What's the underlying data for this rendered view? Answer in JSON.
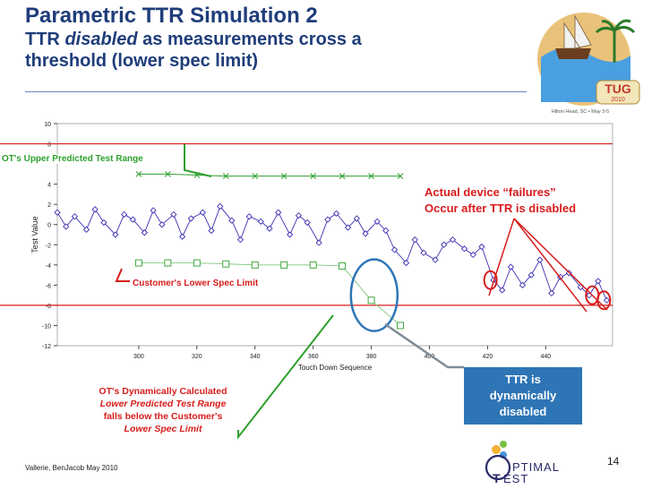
{
  "header": {
    "title": "Parametric TTR Simulation 2",
    "subtitle_prefix": "TTR ",
    "subtitle_em": "disabled",
    "subtitle_rest": " as measurements cross a",
    "subtitle_line3": "threshold (lower spec limit)"
  },
  "logo": {
    "text": "TUG",
    "year": "2010",
    "place": "Hilton Head, SC • May 3-5"
  },
  "callouts": {
    "upper_range": "OT's Upper Predicted Test Range",
    "failures_line1": "Actual device “failures”",
    "failures_line2": "Occur after TTR is disabled",
    "lower_spec": "Customer's Lower Spec Limit",
    "dyn_line1": "OT's Dynamically Calculated",
    "dyn_line2": "Lower Predicted Test Range",
    "dyn_line3": "falls below the Customer's",
    "dyn_line4": "Lower Spec Limit",
    "ttr_line1": "TTR is",
    "ttr_line2": "dynamically",
    "ttr_line3": "disabled"
  },
  "footer": {
    "author": "Vallerie, BenJacob  May 2010",
    "page": "14"
  },
  "brand": {
    "line1": "PTIMAL",
    "line2": "EST"
  },
  "colors": {
    "title": "#1f3d7a",
    "series": "#3b2fb4",
    "upper": "#2ea02e",
    "lower": "#7fc97f",
    "limit": "#d81c1c",
    "accent": "#2e75b6"
  },
  "chart_data": {
    "type": "scatter",
    "xlabel": "Touch Down Sequence",
    "ylabel": "Test Value",
    "xlim": [
      272,
      463
    ],
    "ylim": [
      -12,
      10
    ],
    "xticks": [
      300,
      320,
      340,
      360,
      380,
      400,
      420,
      440
    ],
    "yticks": [
      10,
      8,
      4,
      2,
      0,
      -2,
      -4,
      -6,
      -8,
      -10,
      -12
    ],
    "series": [
      {
        "name": "",
        "role": "measured",
        "x": [
          272,
          275,
          278,
          282,
          285,
          288,
          292,
          295,
          298,
          302,
          305,
          308,
          312,
          315,
          318,
          322,
          325,
          328,
          332,
          335,
          338,
          342,
          345,
          348,
          352,
          355,
          358,
          362,
          365,
          368,
          372,
          375,
          378,
          382,
          385,
          388,
          392,
          395,
          398,
          402,
          405,
          408,
          412,
          415,
          418,
          422,
          425,
          428,
          432,
          435,
          438,
          442,
          445,
          448,
          452,
          455,
          458,
          461
        ],
        "y": [
          1.2,
          -0.2,
          0.8,
          -0.5,
          1.5,
          0.2,
          -1.0,
          1.0,
          0.5,
          -0.8,
          1.4,
          0.0,
          1.0,
          -1.2,
          0.6,
          1.2,
          -0.6,
          1.8,
          0.4,
          -1.5,
          0.8,
          0.3,
          -0.4,
          1.2,
          -1.0,
          0.9,
          0.2,
          -1.8,
          0.5,
          1.1,
          -0.3,
          0.6,
          -0.9,
          0.3,
          -0.6,
          -2.5,
          -3.8,
          -1.5,
          -2.8,
          -3.5,
          -2.0,
          -1.5,
          -2.4,
          -3.0,
          -2.2,
          -5.5,
          -6.5,
          -4.2,
          -6.0,
          -5.0,
          -3.5,
          -6.8,
          -5.2,
          -4.8,
          -6.2,
          -7.0,
          -5.6,
          -7.5
        ]
      },
      {
        "name": "",
        "role": "upper predicted range",
        "x": [
          300,
          310,
          320,
          330,
          340,
          350,
          360,
          370,
          380,
          390
        ],
        "y": [
          5.0,
          5.0,
          4.9,
          4.8,
          4.8,
          4.8,
          4.8,
          4.8,
          4.8,
          4.8
        ]
      },
      {
        "name": "",
        "role": "lower predicted range",
        "x": [
          300,
          310,
          320,
          330,
          340,
          350,
          360,
          370,
          380,
          390
        ],
        "y": [
          -3.8,
          -3.8,
          -3.8,
          -3.9,
          -4.0,
          -4.0,
          -4.0,
          -4.1,
          -7.5,
          -10.0
        ]
      }
    ],
    "limits": [
      {
        "name": "",
        "role": "lower spec limit",
        "value": -8
      },
      {
        "name": "",
        "role": "upper line",
        "value": 8
      }
    ],
    "circled_x": [
      421,
      456,
      460
    ]
  }
}
